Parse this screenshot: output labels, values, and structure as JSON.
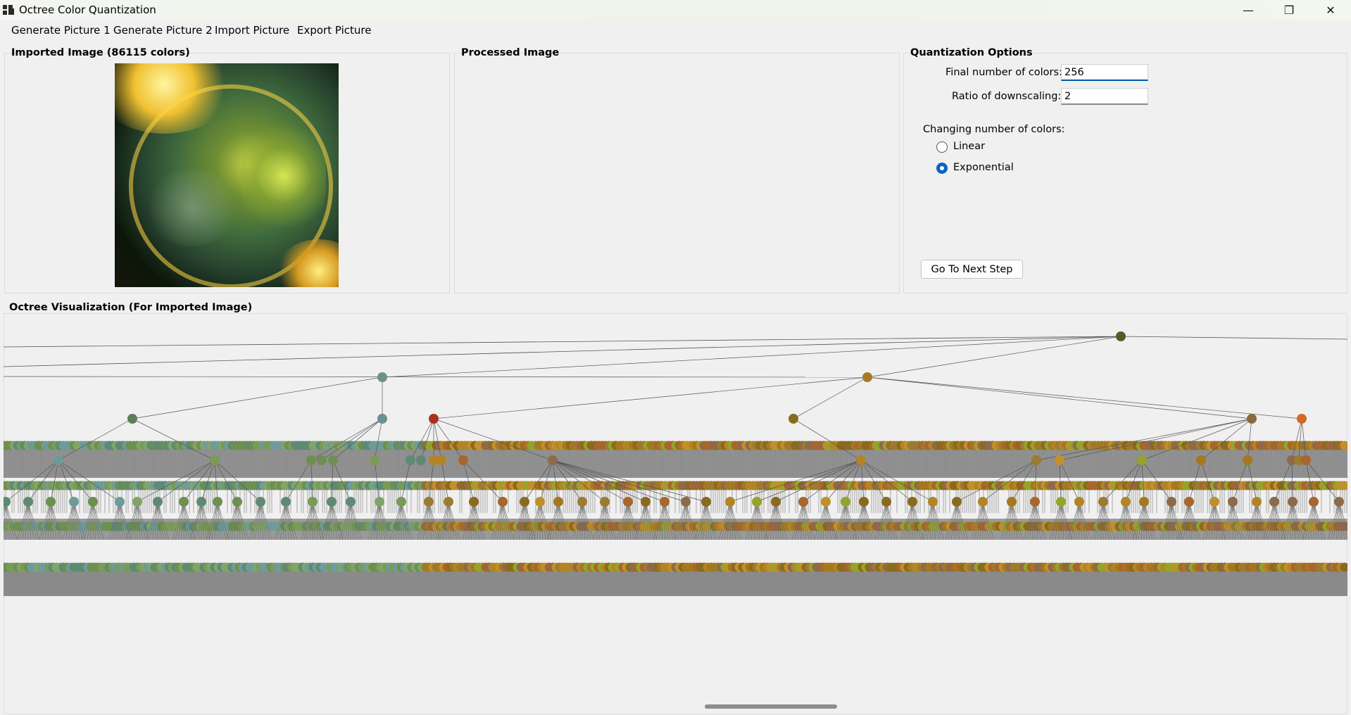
{
  "window": {
    "title": "Octree Color Quantization",
    "controls": {
      "minimize": "—",
      "restore": "❐",
      "close": "✕"
    }
  },
  "menu": [
    "Generate Picture 1",
    "Generate Picture 2",
    "Import Picture",
    "Export Picture"
  ],
  "imported": {
    "title": "Imported Image (86115 colors)"
  },
  "processed": {
    "title": "Processed Image"
  },
  "options": {
    "title": "Quantization Options",
    "final_colors_label": "Final number of colors:",
    "final_colors_value": "256",
    "downscale_label": "Ratio of downscaling:",
    "downscale_value": "2",
    "changing_label": "Changing number of colors:",
    "linear_label": "Linear",
    "exponential_label": "Exponential",
    "selected": "Exponential",
    "next_button": "Go To Next Step"
  },
  "octree": {
    "title": "Octree Visualization (For Imported Image)",
    "root_color": "#555a2a",
    "level1_colors": [
      "#6f8f8a",
      "#a87a22"
    ],
    "level2_colors": [
      "#5d7f56",
      "#6a9090",
      "#a8321e",
      "#8a6a1c",
      "#8a6a3f",
      "#d36a25"
    ],
    "palette_left": [
      "#6e8f4f",
      "#7a9a5a",
      "#5e8a74",
      "#6e9b9a",
      "#82a36a"
    ],
    "palette_right": [
      "#8a6a1e",
      "#a5781f",
      "#b28425",
      "#c0902a",
      "#9c7a30",
      "#a8652d",
      "#8c6a4a",
      "#95a32a"
    ]
  }
}
